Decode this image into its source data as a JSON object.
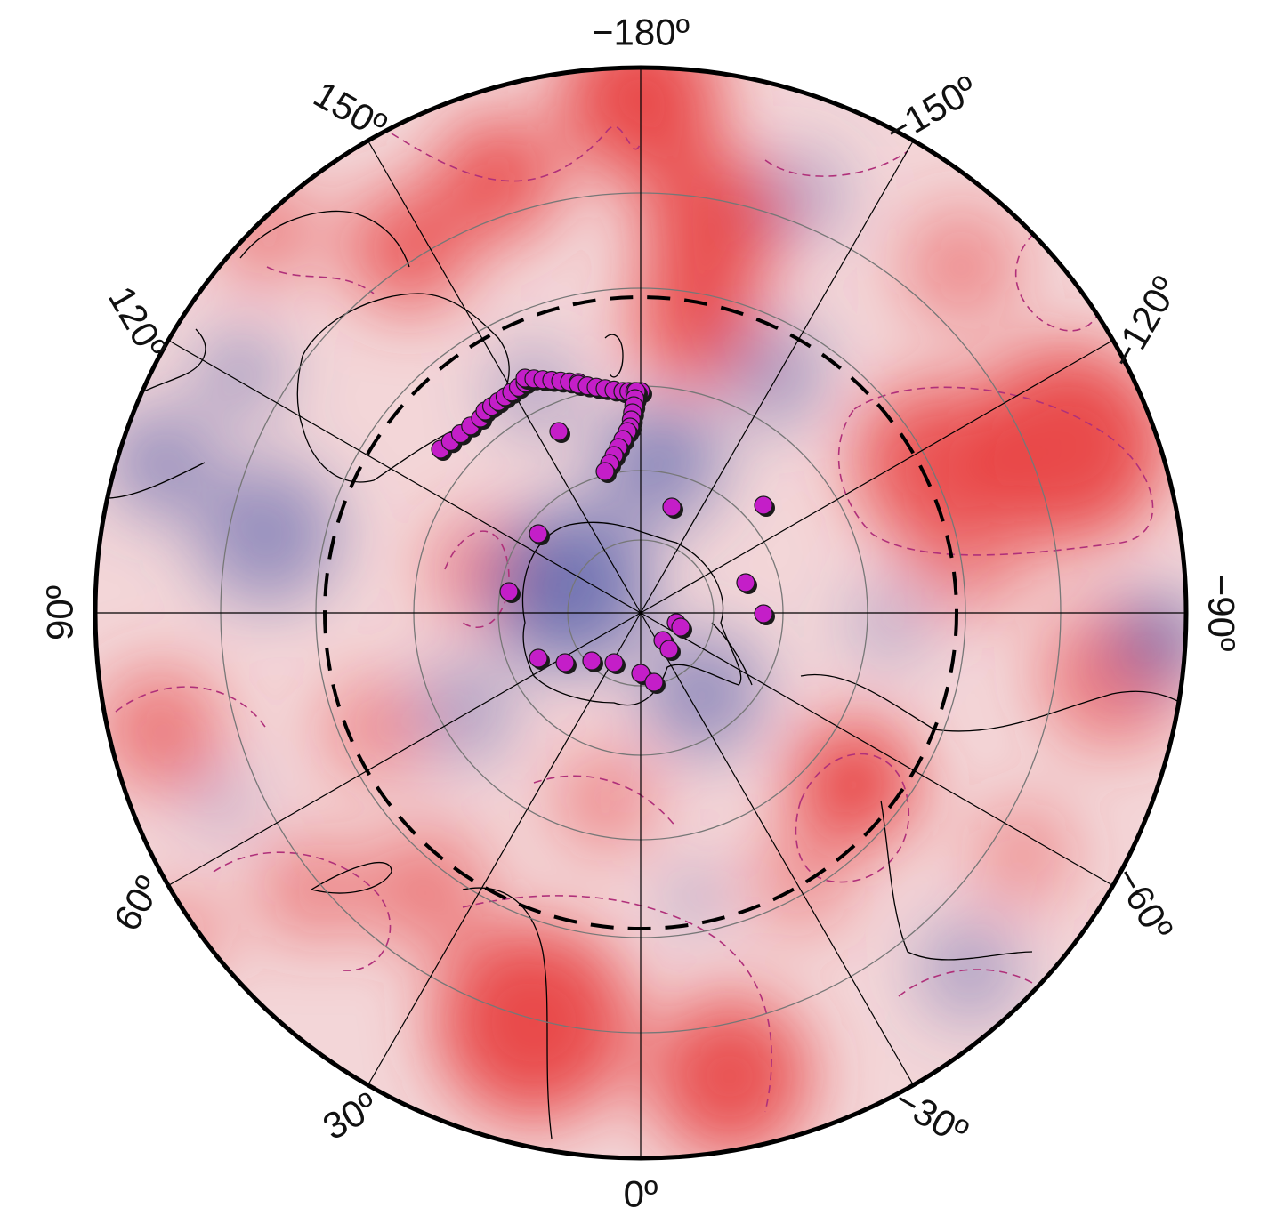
{
  "map": {
    "projection": "south polar stereographic",
    "center": "South Pole",
    "longitude_labels": [
      {
        "lon": -180,
        "text": "−180º"
      },
      {
        "lon": -150,
        "text": "−150º"
      },
      {
        "lon": -120,
        "text": "−120º"
      },
      {
        "lon": -90,
        "text": "−90º"
      },
      {
        "lon": -60,
        "text": "−60º"
      },
      {
        "lon": -30,
        "text": "−30º"
      },
      {
        "lon": 0,
        "text": "0º"
      },
      {
        "lon": 30,
        "text": "30º"
      },
      {
        "lon": 60,
        "text": "60º"
      },
      {
        "lon": 90,
        "text": "90º"
      },
      {
        "lon": 120,
        "text": "120º"
      },
      {
        "lon": 150,
        "text": "150º"
      }
    ],
    "meridian_step_deg": 30,
    "latitude_circles_count": 5,
    "dashed_reference_circle": true,
    "colors": {
      "positive_anomaly": "#e83a3a",
      "negative_anomaly": "#4a56a8",
      "neutral": "#ffffff",
      "contour_dashed": "#b0307a",
      "coastline": "#000000",
      "graticule": "#777777",
      "earthquake_marker_fill": "#c41ec8",
      "earthquake_marker_stroke": "#1a1a1a",
      "dashed_circle": "#000000"
    },
    "symbols": {
      "event_marker": "filled circle"
    }
  }
}
